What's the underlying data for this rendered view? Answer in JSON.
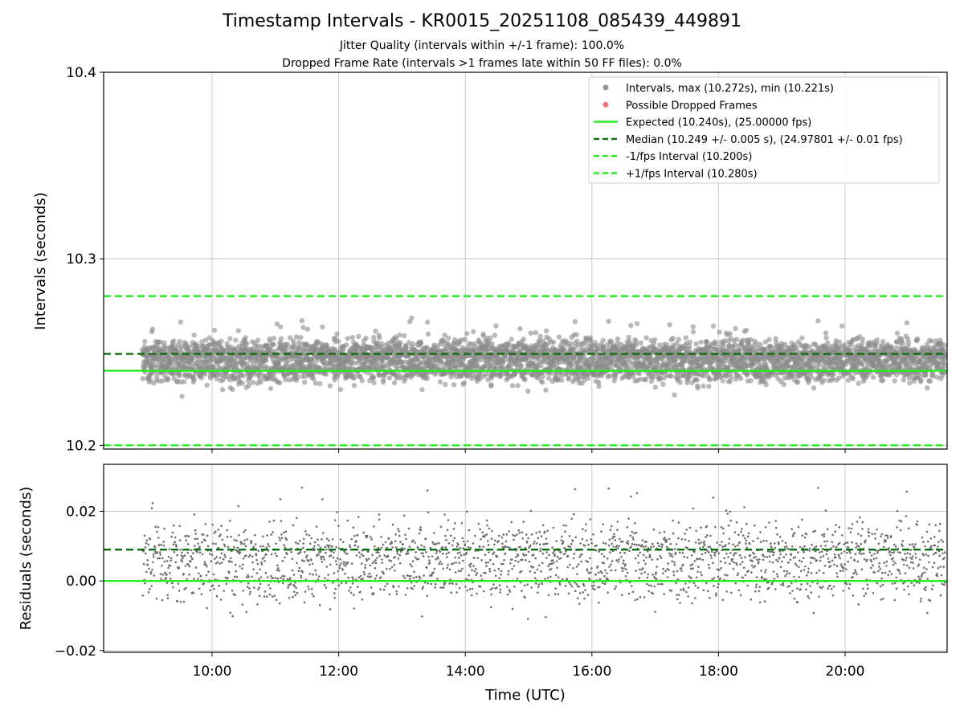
{
  "chart_data": {
    "type": "scatter",
    "title": "Timestamp Intervals - KR0015_20251108_085439_449891",
    "subtitle_1": "Jitter Quality (intervals within +/-1 frame): 100.0%",
    "subtitle_2": "Dropped Frame Rate (intervals >1 frames late within 50 FF files): 0.0%",
    "xlabel": "Time (UTC)",
    "x_start": "08:54",
    "x_end": "21:35",
    "x_ticks": [
      "10:00",
      "12:00",
      "14:00",
      "16:00",
      "18:00",
      "20:00"
    ],
    "interval_panel": {
      "ylabel": "Intervals (seconds)",
      "ylim": [
        10.198,
        10.4
      ],
      "y_ticks": [
        10.2,
        10.3,
        10.4
      ],
      "point_count": 4400,
      "interval_seconds": 10.24,
      "max_interval": 10.272,
      "min_interval": 10.221,
      "expected": 10.24,
      "median": 10.249,
      "lower_bound": 10.2,
      "upper_bound": 10.28
    },
    "residual_panel": {
      "ylabel": "Residuals (seconds)",
      "ylim": [
        -0.0205,
        0.0335
      ],
      "y_ticks": [
        -0.02,
        0.0,
        0.02
      ],
      "y_tick_labels": [
        "−0.02",
        "0.00",
        "0.02"
      ],
      "expected": 0.0,
      "median": 0.009
    },
    "legend": {
      "position": "upper right",
      "entries": [
        {
          "label": "Intervals, max (10.272s), min (10.221s)",
          "kind": "marker",
          "color": "#8c8c8c"
        },
        {
          "label": "Possible Dropped Frames",
          "kind": "marker",
          "color": "#ee6666"
        },
        {
          "label": "Expected (10.240s), (25.00000 fps)",
          "kind": "solid",
          "color": "#22ee22"
        },
        {
          "label": "Median (10.249 +/- 0.005 s), (24.97801 +/- 0.01 fps)",
          "kind": "dashed",
          "color": "#0a6e0a"
        },
        {
          "label": "-1/fps Interval (10.200s)",
          "kind": "dashed",
          "color": "#22ee22"
        },
        {
          "label": "+1/fps Interval (10.280s)",
          "kind": "dashed",
          "color": "#22ee22"
        }
      ]
    },
    "colors": {
      "points": "#8c8c8c",
      "residual_points": "#6e6e6e",
      "expected": "#22ee22",
      "median": "#0a6e0a",
      "bounds": "#22ee22",
      "grid": "#c8c8c8"
    }
  }
}
